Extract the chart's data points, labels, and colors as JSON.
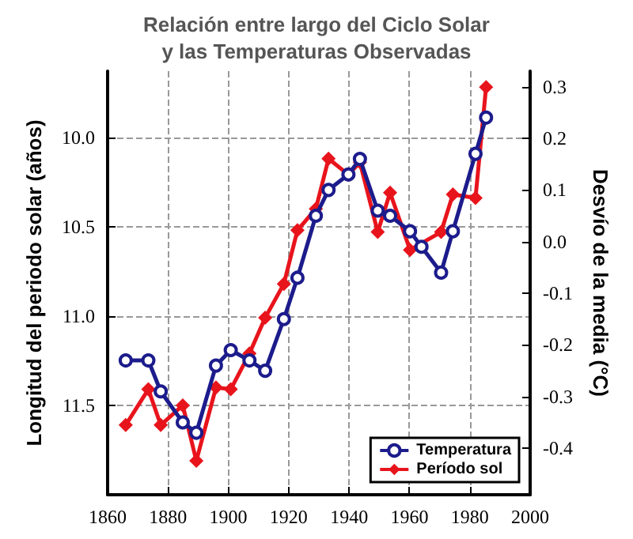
{
  "chart_data": {
    "type": "line",
    "title": "Relación entre largo del Ciclo Solar\ny las Temperaturas Observadas",
    "xlabel": null,
    "ylabel": "Longitud del periodo solar (años)",
    "y2label": "Desvío de la media (°C)",
    "series": [
      {
        "name": "Temperatura",
        "color": "#1c1c8c",
        "axis": "y2",
        "marker": "circle",
        "x": [
          1866,
          1873.5,
          1877.6,
          1884.9,
          1889.4,
          1895.9,
          1900.8,
          1907,
          1912.2,
          1918.4,
          1922.9,
          1929,
          1933.2,
          1939.8,
          1943.6,
          1949.5,
          1953.6,
          1960.2,
          1964,
          1970.5,
          1974.4,
          1981.9,
          1985.4
        ],
        "values": [
          -0.23,
          -0.23,
          -0.29,
          -0.35,
          -0.37,
          -0.24,
          -0.21,
          -0.23,
          -0.25,
          -0.15,
          -0.07,
          0.05,
          0.1,
          0.13,
          0.16,
          0.06,
          0.05,
          0.02,
          -0.01,
          -0.06,
          0.02,
          0.17,
          0.24
        ]
      },
      {
        "name": "Período sol",
        "color": "#e8141c",
        "marker": "diamond",
        "x": [
          1866,
          1873.5,
          1877.6,
          1884.9,
          1889.4,
          1895.9,
          1900.8,
          1907,
          1912.2,
          1918.4,
          1922.9,
          1929,
          1933.2,
          1939.8,
          1943.6,
          1949.5,
          1953.6,
          1960.2,
          1970.5,
          1974.4,
          1981.9,
          1985.4
        ],
        "values": [
          11.61,
          11.41,
          11.61,
          11.5,
          11.81,
          11.4,
          11.41,
          11.21,
          11.01,
          10.82,
          10.52,
          10.4,
          10.12,
          10.21,
          10.14,
          10.53,
          10.31,
          10.63,
          10.53,
          10.32,
          10.34,
          9.72
        ]
      }
    ],
    "xlim": [
      1860,
      2000
    ],
    "xticks": [
      1860,
      1880,
      1900,
      1920,
      1940,
      1960,
      1980,
      2000
    ],
    "ylim": [
      12.0,
      9.63
    ],
    "yticks": [
      {
        "value": 10,
        "label": "10.0"
      },
      {
        "value": 10.5,
        "label": "10.5"
      },
      {
        "value": 11,
        "label": "11.0"
      },
      {
        "value": 11.5,
        "label": "11.5"
      }
    ],
    "y2lim": [
      -0.49,
      0.33
    ],
    "y2ticks": [
      {
        "value": 0.3,
        "label": "0.3"
      },
      {
        "value": 0.2,
        "label": "0.2"
      },
      {
        "value": 0.1,
        "label": "0.1"
      },
      {
        "value": 0,
        "label": "0.0"
      },
      {
        "value": -0.1,
        "label": "-0.1"
      },
      {
        "value": -0.2,
        "label": "-0.2"
      },
      {
        "value": -0.3,
        "label": "-0.3"
      },
      {
        "value": -0.4,
        "label": "-0.4"
      }
    ],
    "grid": true,
    "legend": "bottom right",
    "line_style": "solid"
  }
}
